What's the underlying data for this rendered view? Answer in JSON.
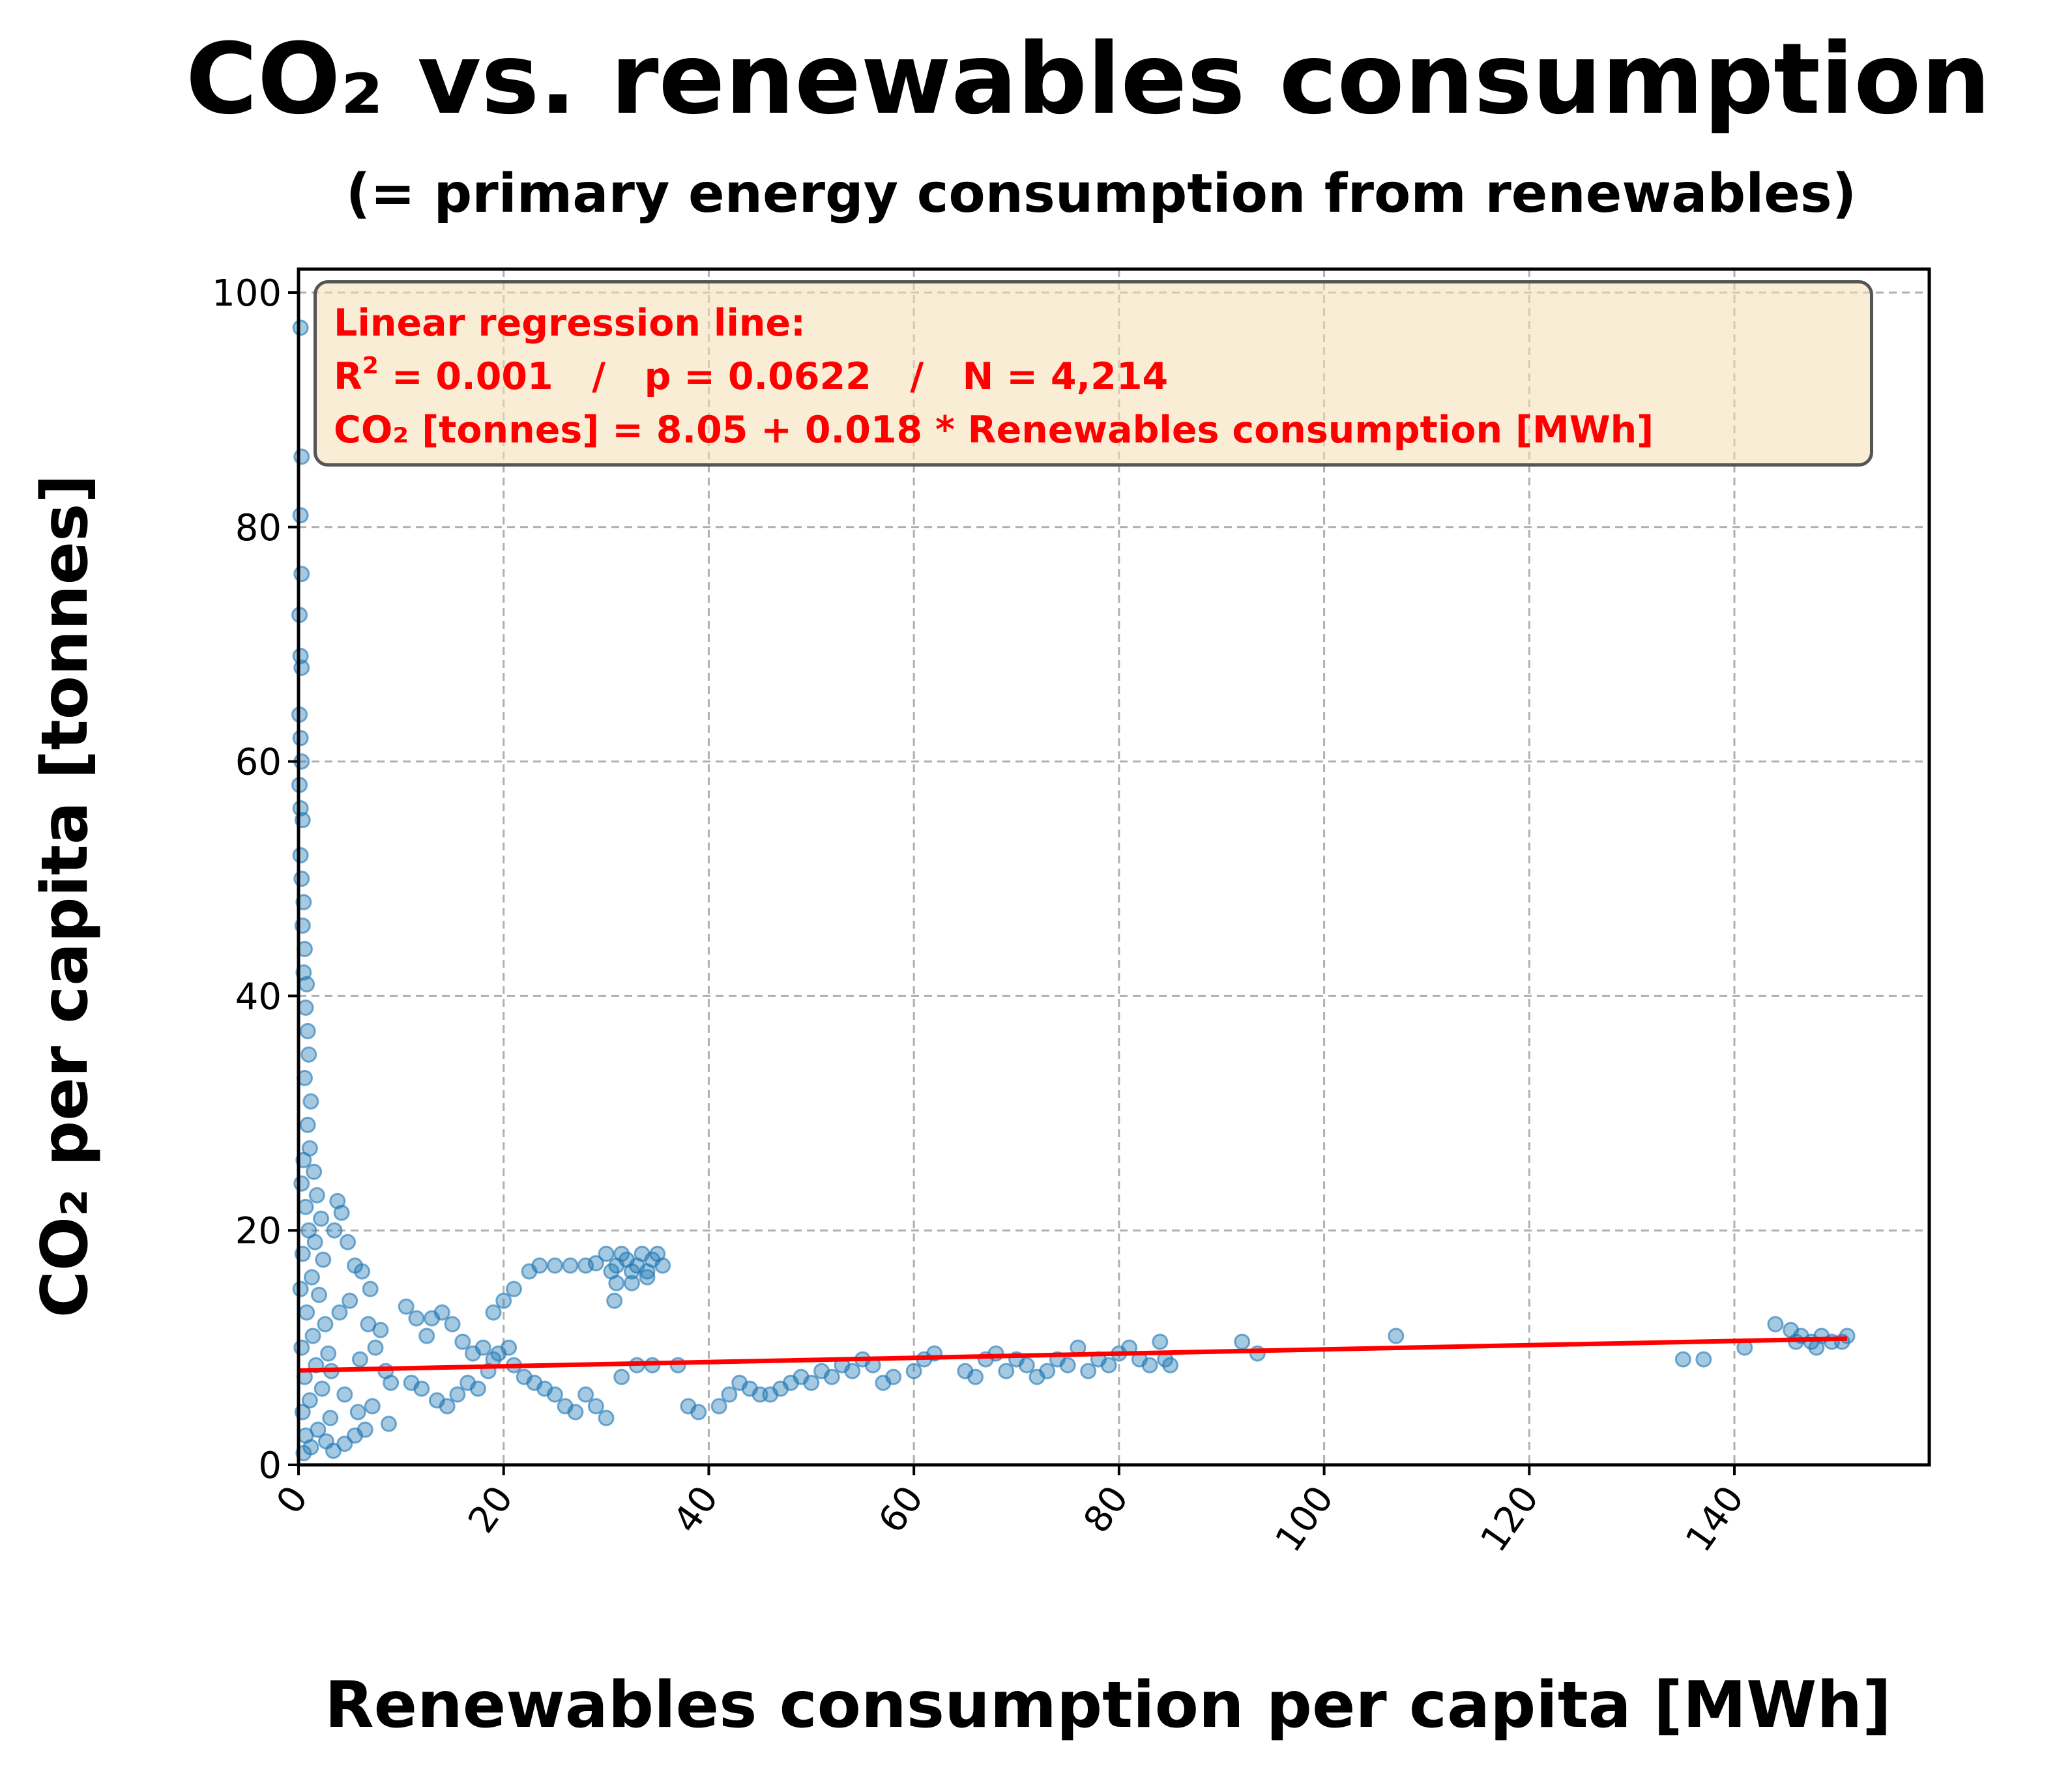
{
  "title": "CO₂ vs. renewables consumption",
  "subtitle": "(= primary energy consumption from renewables)",
  "stats_box": {
    "line1": "Linear regression line:",
    "r2_label": "R",
    "r2_sup": "2",
    "line2_rest": " = 0.001   /   p = 0.0622   /   N = 4,214",
    "line3": "CO₂ [tonnes] = 8.05 + 0.018 * Renewables consumption [MWh]"
  },
  "colors": {
    "points": "#1f77b4",
    "regression": "#ff0000",
    "grid": "#b0b0b0",
    "box_text": "#ff0000"
  },
  "chart_data": {
    "type": "scatter",
    "xlabel": "Renewables consumption per capita [MWh]",
    "ylabel": "CO₂ per capita [tonnes]",
    "xlim": [
      0,
      159
    ],
    "ylim": [
      0,
      102
    ],
    "xticks": [
      0,
      20,
      40,
      60,
      80,
      100,
      120,
      140
    ],
    "yticks": [
      0,
      20,
      40,
      60,
      80,
      100
    ],
    "grid": true,
    "regression": {
      "intercept": 8.05,
      "slope": 0.018,
      "x_range": [
        0,
        151
      ]
    },
    "series": [
      {
        "points": [
          [
            0.2,
            97
          ],
          [
            0.3,
            86
          ],
          [
            0.2,
            81
          ],
          [
            0.3,
            76
          ],
          [
            0.1,
            72.5
          ],
          [
            0.2,
            69
          ],
          [
            0.3,
            68
          ],
          [
            0.1,
            64
          ],
          [
            0.2,
            62
          ],
          [
            0.3,
            60
          ],
          [
            0.1,
            58
          ],
          [
            0.2,
            56
          ],
          [
            0.4,
            55
          ],
          [
            0.2,
            52
          ],
          [
            0.3,
            50
          ],
          [
            0.5,
            48
          ],
          [
            0.4,
            46
          ],
          [
            0.6,
            44
          ],
          [
            0.5,
            42
          ],
          [
            0.8,
            41
          ],
          [
            0.7,
            39
          ],
          [
            0.9,
            37
          ],
          [
            1.0,
            35
          ],
          [
            0.6,
            33
          ],
          [
            1.2,
            31
          ],
          [
            0.9,
            29
          ],
          [
            1.1,
            27
          ],
          [
            0.5,
            26
          ],
          [
            1.5,
            25
          ],
          [
            0.3,
            24
          ],
          [
            1.8,
            23
          ],
          [
            0.7,
            22
          ],
          [
            2.2,
            21
          ],
          [
            1.0,
            20
          ],
          [
            1.6,
            19
          ],
          [
            0.4,
            18
          ],
          [
            2.4,
            17.5
          ],
          [
            1.3,
            16
          ],
          [
            0.2,
            15
          ],
          [
            2.0,
            14.5
          ],
          [
            0.8,
            13
          ],
          [
            2.6,
            12
          ],
          [
            1.4,
            11
          ],
          [
            0.3,
            10
          ],
          [
            2.9,
            9.5
          ],
          [
            1.7,
            8.5
          ],
          [
            0.6,
            7.5
          ],
          [
            2.3,
            6.5
          ],
          [
            1.1,
            5.5
          ],
          [
            0.4,
            4.5
          ],
          [
            3.1,
            4
          ],
          [
            1.9,
            3
          ],
          [
            0.7,
            2.5
          ],
          [
            2.7,
            2
          ],
          [
            1.2,
            1.5
          ],
          [
            0.5,
            1
          ],
          [
            3.4,
            1.2
          ],
          [
            4.5,
            1.8
          ],
          [
            5.5,
            2.5
          ],
          [
            6.5,
            3
          ],
          [
            3.8,
            22.5
          ],
          [
            4.2,
            21.5
          ],
          [
            3.5,
            20
          ],
          [
            4.8,
            19
          ],
          [
            5.5,
            17
          ],
          [
            6.2,
            16.5
          ],
          [
            7.0,
            15
          ],
          [
            5.0,
            14
          ],
          [
            4.0,
            13
          ],
          [
            6.8,
            12
          ],
          [
            8.0,
            11.5
          ],
          [
            7.5,
            10
          ],
          [
            6.0,
            9
          ],
          [
            8.5,
            8
          ],
          [
            9.0,
            7
          ],
          [
            4.5,
            6
          ],
          [
            7.2,
            5
          ],
          [
            5.8,
            4.5
          ],
          [
            8.8,
            3.5
          ],
          [
            3.2,
            8
          ],
          [
            10.5,
            13.5
          ],
          [
            11.5,
            12.5
          ],
          [
            12.5,
            11
          ],
          [
            13.0,
            12.5
          ],
          [
            14.0,
            13
          ],
          [
            15.0,
            12
          ],
          [
            16.0,
            10.5
          ],
          [
            17.0,
            9.5
          ],
          [
            18.0,
            10
          ],
          [
            19.0,
            9
          ],
          [
            11.0,
            7
          ],
          [
            12.0,
            6.5
          ],
          [
            13.5,
            5.5
          ],
          [
            14.5,
            5
          ],
          [
            15.5,
            6
          ],
          [
            16.5,
            7
          ],
          [
            17.5,
            6.5
          ],
          [
            18.5,
            8
          ],
          [
            19.5,
            9.5
          ],
          [
            20.5,
            10
          ],
          [
            21.0,
            8.5
          ],
          [
            22.0,
            7.5
          ],
          [
            23.0,
            7
          ],
          [
            24.0,
            6.5
          ],
          [
            25.0,
            6
          ],
          [
            26.0,
            5
          ],
          [
            27.0,
            4.5
          ],
          [
            28.0,
            6
          ],
          [
            29.0,
            5
          ],
          [
            30.0,
            4
          ],
          [
            19.0,
            13
          ],
          [
            20.0,
            14
          ],
          [
            21.0,
            15
          ],
          [
            22.5,
            16.5
          ],
          [
            23.5,
            17
          ],
          [
            25.0,
            17
          ],
          [
            26.5,
            17
          ],
          [
            28.0,
            17
          ],
          [
            29.0,
            17.2
          ],
          [
            30.0,
            18
          ],
          [
            30.5,
            16.5
          ],
          [
            31.0,
            17
          ],
          [
            31.5,
            18
          ],
          [
            32.0,
            17.5
          ],
          [
            32.5,
            16.5
          ],
          [
            33.0,
            17
          ],
          [
            33.5,
            18
          ],
          [
            34.0,
            16.5
          ],
          [
            34.5,
            17.5
          ],
          [
            35.0,
            18
          ],
          [
            31.0,
            15.5
          ],
          [
            32.5,
            15.5
          ],
          [
            34.0,
            16
          ],
          [
            35.5,
            17
          ],
          [
            30.8,
            14
          ],
          [
            31.5,
            7.5
          ],
          [
            33.0,
            8.5
          ],
          [
            34.5,
            8.5
          ],
          [
            37.0,
            8.5
          ],
          [
            38.0,
            5
          ],
          [
            39.0,
            4.5
          ],
          [
            41.0,
            5
          ],
          [
            42.0,
            6
          ],
          [
            43.0,
            7
          ],
          [
            44.0,
            6.5
          ],
          [
            45.0,
            6
          ],
          [
            46.0,
            6
          ],
          [
            47.0,
            6.5
          ],
          [
            48.0,
            7
          ],
          [
            49.0,
            7.5
          ],
          [
            50.0,
            7
          ],
          [
            51.0,
            8
          ],
          [
            52.0,
            7.5
          ],
          [
            53.0,
            8.5
          ],
          [
            54.0,
            8
          ],
          [
            55.0,
            9
          ],
          [
            56.0,
            8.5
          ],
          [
            57.0,
            7
          ],
          [
            58.0,
            7.5
          ],
          [
            60.0,
            8
          ],
          [
            61.0,
            9
          ],
          [
            62.0,
            9.5
          ],
          [
            65.0,
            8
          ],
          [
            66.0,
            7.5
          ],
          [
            67.0,
            9
          ],
          [
            68.0,
            9.5
          ],
          [
            69.0,
            8
          ],
          [
            70.0,
            9
          ],
          [
            71.0,
            8.5
          ],
          [
            72.0,
            7.5
          ],
          [
            73.0,
            8
          ],
          [
            74.0,
            9
          ],
          [
            75.0,
            8.5
          ],
          [
            76.0,
            10
          ],
          [
            77.0,
            8
          ],
          [
            78.0,
            9
          ],
          [
            79.0,
            8.5
          ],
          [
            80.0,
            9.5
          ],
          [
            81.0,
            10
          ],
          [
            82.0,
            9
          ],
          [
            83.0,
            8.5
          ],
          [
            84.0,
            10.5
          ],
          [
            84.5,
            9
          ],
          [
            85.0,
            8.5
          ],
          [
            92.0,
            10.5
          ],
          [
            93.5,
            9.5
          ],
          [
            107.0,
            11
          ],
          [
            135.0,
            9
          ],
          [
            137.0,
            9
          ],
          [
            141.0,
            10
          ],
          [
            144.0,
            12
          ],
          [
            145.5,
            11.5
          ],
          [
            146.5,
            11
          ],
          [
            147.5,
            10.5
          ],
          [
            148.5,
            11
          ],
          [
            149.5,
            10.5
          ],
          [
            150.5,
            10.5
          ],
          [
            146.0,
            10.5
          ],
          [
            148.0,
            10
          ],
          [
            151.0,
            11
          ]
        ]
      }
    ]
  }
}
